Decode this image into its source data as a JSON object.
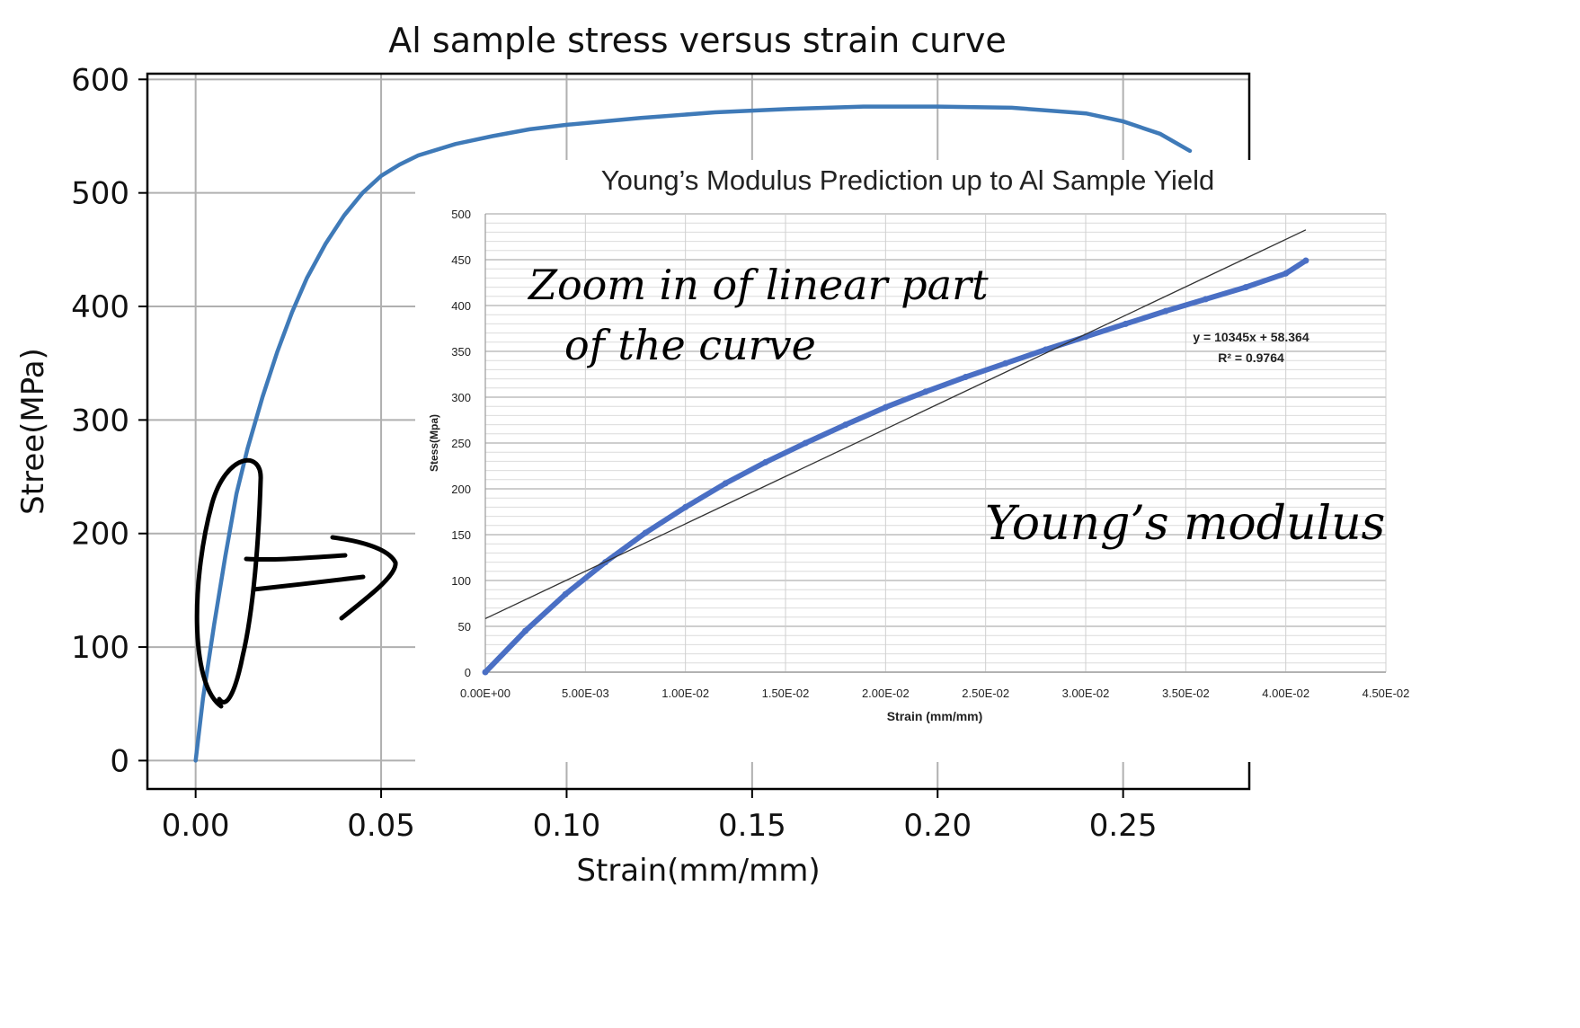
{
  "chart_data": [
    {
      "type": "line",
      "title": "Al sample stress versus strain curve",
      "xlabel": "Strain(mm/mm)",
      "ylabel": "Stree(MPa)",
      "xlim": [
        -0.013,
        0.284
      ],
      "ylim": [
        -25,
        605
      ],
      "xticks": [
        "0.00",
        "0.05",
        "0.10",
        "0.15",
        "0.20",
        "0.25"
      ],
      "xtick_values": [
        0,
        0.05,
        0.1,
        0.15,
        0.2,
        0.25
      ],
      "yticks": [
        "0",
        "100",
        "200",
        "300",
        "400",
        "500",
        "600"
      ],
      "ytick_values": [
        0,
        100,
        200,
        300,
        400,
        500,
        600
      ],
      "grid": true,
      "color": "#3f7ab8",
      "series": [
        {
          "x": [
            0,
            0.002,
            0.005,
            0.008,
            0.011,
            0.014,
            0.018,
            0.022,
            0.026,
            0.03,
            0.035,
            0.04,
            0.045,
            0.05,
            0.055,
            0.06,
            0.07,
            0.08,
            0.09,
            0.1,
            0.12,
            0.14,
            0.16,
            0.18,
            0.2,
            0.22,
            0.24,
            0.25,
            0.26,
            0.268
          ],
          "y": [
            0,
            55,
            120,
            180,
            235,
            275,
            320,
            360,
            395,
            425,
            455,
            480,
            500,
            515,
            525,
            533,
            543,
            550,
            556,
            560,
            566,
            571,
            574,
            576,
            576,
            575,
            570,
            563,
            552,
            537
          ]
        }
      ]
    },
    {
      "type": "scatter",
      "title": "Young’s Modulus Prediction up to Al Sample Yield",
      "xlabel": "Strain (mm/mm)",
      "ylabel": "Stess(Mpa)",
      "xlim": [
        0,
        0.045
      ],
      "ylim": [
        0,
        500
      ],
      "xticks": [
        "0.00E+00",
        "5.00E-03",
        "1.00E-02",
        "1.50E-02",
        "2.00E-02",
        "2.50E-02",
        "3.00E-02",
        "3.50E-02",
        "4.00E-02",
        "4.50E-02"
      ],
      "xtick_values": [
        0,
        0.005,
        0.01,
        0.015,
        0.02,
        0.025,
        0.03,
        0.035,
        0.04,
        0.045
      ],
      "yticks": [
        "0",
        "50",
        "100",
        "150",
        "200",
        "250",
        "300",
        "350",
        "400",
        "450",
        "500"
      ],
      "ytick_values": [
        0,
        50,
        100,
        150,
        200,
        250,
        300,
        350,
        400,
        450,
        500
      ],
      "grid": true,
      "color": "#4a6fc4",
      "series": [
        {
          "x": [
            0,
            0.002,
            0.004,
            0.006,
            0.008,
            0.01,
            0.012,
            0.014,
            0.016,
            0.018,
            0.02,
            0.022,
            0.024,
            0.026,
            0.028,
            0.03,
            0.032,
            0.034,
            0.036,
            0.038,
            0.04,
            0.041
          ],
          "y": [
            0,
            45,
            85,
            120,
            152,
            180,
            206,
            229,
            250,
            270,
            289,
            306,
            322,
            337,
            352,
            366,
            380,
            394,
            407,
            420,
            435,
            449
          ]
        }
      ],
      "trendline": {
        "slope": 10345,
        "intercept": 58.364,
        "x_range": [
          0,
          0.041
        ],
        "equation": "y = 10345x + 58.364",
        "r2": "R² = 0.9764",
        "color": "#333333"
      }
    }
  ],
  "annotations": {
    "zoom_line1": "Zoom in of linear part",
    "zoom_line2": "of the curve",
    "youngs": "Young’s modulus"
  }
}
